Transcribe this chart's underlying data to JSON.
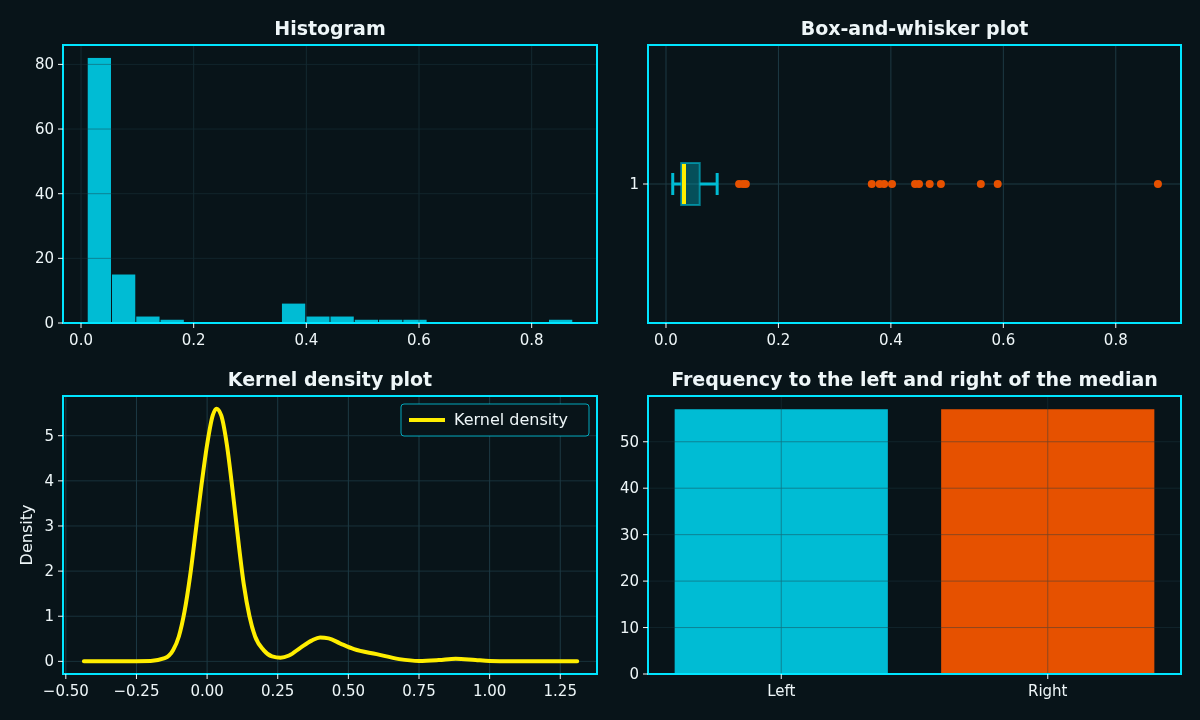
{
  "chart_data": [
    {
      "type": "histogram",
      "title": "Histogram",
      "color": "#00bcd4",
      "bins": [
        0.011,
        0.0541,
        0.0972,
        0.1403,
        0.1834,
        0.2265,
        0.2696,
        0.3127,
        0.3558,
        0.3989,
        0.442,
        0.4851,
        0.5282,
        0.5713,
        0.6144,
        0.6575,
        0.7006,
        0.7437,
        0.7868,
        0.8299,
        0.873
      ],
      "values": [
        82,
        15,
        2,
        1,
        0,
        0,
        0,
        0,
        6,
        2,
        2,
        1,
        1,
        1,
        0,
        0,
        0,
        0,
        0,
        1
      ],
      "xlim": [
        -0.032,
        0.916
      ],
      "xticks": [
        {
          "value": 0,
          "label": "0.0"
        },
        {
          "value": 0.2,
          "label": "0.2"
        },
        {
          "value": 0.4,
          "label": "0.4"
        },
        {
          "value": 0.6,
          "label": "0.6"
        },
        {
          "value": 0.8,
          "label": "0.8"
        }
      ],
      "ylim": [
        0,
        86
      ],
      "yticks": [
        0,
        20,
        40,
        60,
        80
      ],
      "grid": true
    },
    {
      "type": "box",
      "title": "Box-and-whisker plot",
      "orientation": "horizontal",
      "categories": [
        "1"
      ],
      "color": "#00bcd4",
      "boxes": [
        {
          "low": 0.012,
          "q1": 0.027,
          "median": 0.032,
          "q3": 0.06,
          "high": 0.091,
          "outliers": [
            0.13,
            0.137,
            0.142,
            0.366,
            0.38,
            0.388,
            0.402,
            0.443,
            0.45,
            0.469,
            0.489,
            0.56,
            0.59,
            0.875
          ]
        }
      ],
      "xlim": [
        -0.032,
        0.916
      ],
      "xticks": [
        {
          "value": 0,
          "label": "0.0"
        },
        {
          "value": 0.2,
          "label": "0.2"
        },
        {
          "value": 0.4,
          "label": "0.4"
        },
        {
          "value": 0.6,
          "label": "0.6"
        },
        {
          "value": 0.8,
          "label": "0.8"
        }
      ],
      "grid": true
    },
    {
      "type": "line",
      "title": "Kernel density plot",
      "ylabel": "Density",
      "legend": "top right",
      "series": [
        {
          "name": "Kernel density",
          "color": "#ffee00",
          "x": [
            -0.436,
            -0.3,
            -0.2,
            -0.15,
            -0.12,
            -0.1,
            -0.08,
            -0.06,
            -0.04,
            -0.02,
            0,
            0.02,
            0.033,
            0.05,
            0.07,
            0.09,
            0.11,
            0.13,
            0.15,
            0.17,
            0.2,
            0.23,
            0.26,
            0.29,
            0.33,
            0.37,
            0.4,
            0.43,
            0.47,
            0.52,
            0.6,
            0.68,
            0.75,
            0.82,
            0.88,
            0.95,
            1.0,
            1.1,
            1.31
          ],
          "values": [
            0,
            0,
            0.01,
            0.07,
            0.25,
            0.55,
            1.1,
            1.9,
            2.9,
            3.9,
            4.8,
            5.45,
            5.6,
            5.45,
            4.8,
            3.8,
            2.7,
            1.7,
            1.0,
            0.55,
            0.25,
            0.11,
            0.08,
            0.13,
            0.3,
            0.46,
            0.53,
            0.51,
            0.4,
            0.27,
            0.16,
            0.05,
            0.01,
            0.03,
            0.06,
            0.03,
            0.01,
            0,
            0
          ]
        }
      ],
      "xlim": [
        -0.51,
        1.38
      ],
      "xticks": [
        {
          "value": -0.5,
          "label": "−0.50"
        },
        {
          "value": -0.25,
          "label": "−0.25"
        },
        {
          "value": 0,
          "label": "0.00"
        },
        {
          "value": 0.25,
          "label": "0.25"
        },
        {
          "value": 0.5,
          "label": "0.50"
        },
        {
          "value": 0.75,
          "label": "0.75"
        },
        {
          "value": 1,
          "label": "1.00"
        },
        {
          "value": 1.25,
          "label": "1.25"
        }
      ],
      "ylim": [
        -0.28,
        5.88
      ],
      "yticks": [
        0,
        1,
        2,
        3,
        4,
        5
      ],
      "grid": true
    },
    {
      "type": "bar",
      "title": "Frequency to the left and right of the median",
      "categories": [
        "Left",
        "Right"
      ],
      "values": [
        57,
        57
      ],
      "colors": [
        "#00bcd4",
        "#e65100"
      ],
      "ylim": [
        0,
        59.85
      ],
      "yticks": [
        0,
        10,
        20,
        30,
        40,
        50
      ],
      "grid": true
    }
  ]
}
